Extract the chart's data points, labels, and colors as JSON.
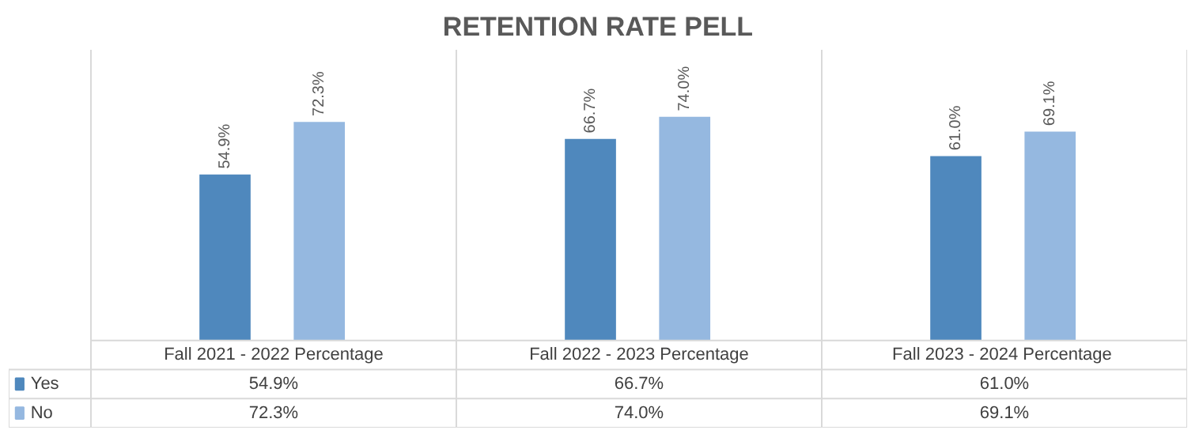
{
  "chart_data": {
    "type": "bar",
    "title": "RETENTION RATE PELL",
    "categories": [
      "Fall 2021 - 2022 Percentage",
      "Fall 2022 - 2023 Percentage",
      "Fall 2023 -  2024 Percentage"
    ],
    "series": [
      {
        "name": "Yes",
        "color": "#4f88bd",
        "values": [
          54.9,
          66.7,
          61.0
        ],
        "value_labels": [
          "54.9%",
          "66.7%",
          "61.0%"
        ]
      },
      {
        "name": "No",
        "color": "#95b8e0",
        "values": [
          72.3,
          74.0,
          69.1
        ],
        "value_labels": [
          "72.3%",
          "74.0%",
          "69.1%"
        ]
      }
    ],
    "legend": "bottom"
  }
}
